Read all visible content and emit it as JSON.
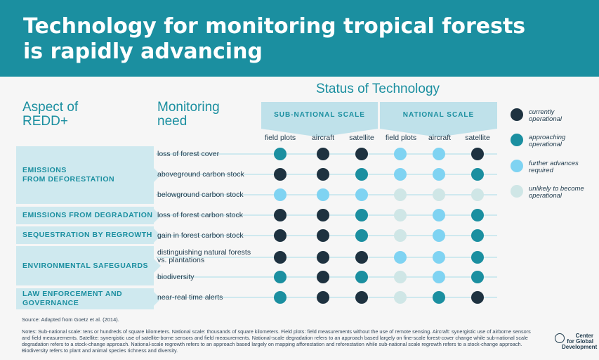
{
  "title": {
    "line1": "Technology for monitoring tropical forests",
    "line2": "is rapidly advancing"
  },
  "status_title": "Status of Technology",
  "headers": {
    "aspect": [
      "Aspect of",
      "REDD+"
    ],
    "need": [
      "Monitoring",
      "need"
    ]
  },
  "scales": [
    "SUB-NATIONAL SCALE",
    "NATIONAL SCALE"
  ],
  "columns": [
    "field plots",
    "aircraft",
    "satellite",
    "field plots",
    "aircraft",
    "satellite"
  ],
  "aspects": [
    {
      "label": [
        "EMISSIONS",
        "FROM DEFORESTATION"
      ]
    },
    {
      "label": [
        "EMISSIONS FROM DEGRADATION"
      ]
    },
    {
      "label": [
        "SEQUESTRATION BY REGROWTH"
      ]
    },
    {
      "label": [
        "ENVIRONMENTAL SAFEGUARDS"
      ]
    },
    {
      "label": [
        "LAW ENFORCEMENT AND",
        "GOVERNANCE"
      ]
    }
  ],
  "rows": [
    {
      "need": [
        "loss of forest cover"
      ],
      "status": [
        "approaching",
        "current",
        "current",
        "further",
        "further",
        "current"
      ]
    },
    {
      "need": [
        "aboveground carbon stock"
      ],
      "status": [
        "current",
        "current",
        "approaching",
        "further",
        "further",
        "approaching"
      ]
    },
    {
      "need": [
        "belowground carbon stock"
      ],
      "status": [
        "further",
        "further",
        "further",
        "unlikely",
        "unlikely",
        "unlikely"
      ]
    },
    {
      "need": [
        "loss of forest carbon stock"
      ],
      "status": [
        "current",
        "current",
        "approaching",
        "unlikely",
        "further",
        "approaching"
      ]
    },
    {
      "need": [
        "gain in forest carbon stock"
      ],
      "status": [
        "current",
        "current",
        "approaching",
        "unlikely",
        "further",
        "approaching"
      ]
    },
    {
      "need": [
        "distinguishing natural forests",
        "vs. plantations"
      ],
      "status": [
        "current",
        "current",
        "current",
        "further",
        "further",
        "approaching"
      ]
    },
    {
      "need": [
        "biodiversity"
      ],
      "status": [
        "approaching",
        "current",
        "approaching",
        "unlikely",
        "further",
        "approaching"
      ]
    },
    {
      "need": [
        "near-real time alerts"
      ],
      "status": [
        "approaching",
        "current",
        "current",
        "unlikely",
        "approaching",
        "current"
      ]
    }
  ],
  "legend": [
    {
      "key": "current",
      "text": [
        "currently",
        "operational"
      ]
    },
    {
      "key": "approaching",
      "text": [
        "approaching",
        "operational"
      ]
    },
    {
      "key": "further",
      "text": [
        "further advances",
        "required"
      ]
    },
    {
      "key": "unlikely",
      "text": [
        "unlikely to become",
        "operational"
      ]
    }
  ],
  "colors": {
    "current": "#1e3240",
    "approaching": "#1b8fa0",
    "further": "#7fd3f2",
    "unlikely": "#cfe6e6",
    "banner": "#1b8fa0"
  },
  "source": "Source: Adapted from Goetz et al. (2014).",
  "notes": "Notes: Sub-national scale: tens or hundreds of square kilometers. National scale: thousands of square kilometers. Field plots: field measurements without the use of remote sensing. Aircraft: synergistic use of airborne sensors and field measurements. Satellite: synergistic use of satellite-borne sensors and field measurements. National-scale degradation refers to an approach based largely on fine-scale forest-cover change while sub-national scale degradation refers to a stock-change approach. National-scale regrowth refers to an approach based largely on mapping afforestation and reforestation while sub-national scale regrowth refers to a stock-change approach. Biodiversity refers to plant and animal species richness and diversity.",
  "logo": [
    "Center",
    "for Global",
    "Development"
  ]
}
